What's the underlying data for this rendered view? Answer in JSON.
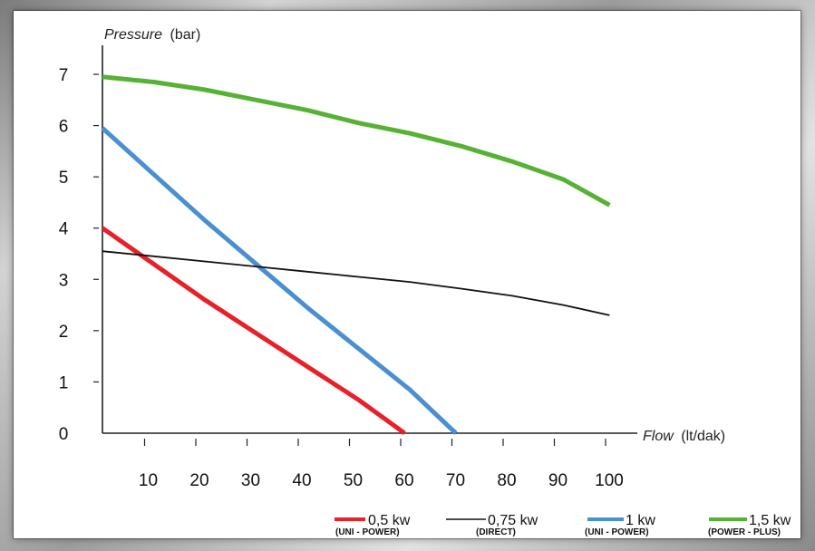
{
  "chart_data": {
    "type": "line",
    "ylabel": {
      "name": "Pressure",
      "unit": "(bar)"
    },
    "xlabel": {
      "name": "Flow",
      "unit": "(lt/dak)"
    },
    "xlim": [
      0,
      100
    ],
    "ylim": [
      0,
      7
    ],
    "x_ticks": [
      10,
      20,
      30,
      40,
      50,
      60,
      70,
      80,
      90,
      100
    ],
    "y_ticks": [
      0,
      1,
      2,
      3,
      4,
      5,
      6,
      7
    ],
    "grid": false,
    "legend_placement": "bottom",
    "series": [
      {
        "name": "0,5 kw",
        "subtitle": "(UNI - POWER)",
        "color": "#e8202a",
        "x": [
          0,
          10,
          20,
          30,
          40,
          50,
          59
        ],
        "y": [
          4.0,
          3.3,
          2.6,
          1.95,
          1.3,
          0.65,
          0.0
        ]
      },
      {
        "name": "0,75 kw",
        "subtitle": "(DIRECT)",
        "color": "#111111",
        "x": [
          0,
          10,
          20,
          30,
          40,
          50,
          60,
          70,
          80,
          90,
          99
        ],
        "y": [
          3.55,
          3.45,
          3.35,
          3.25,
          3.15,
          3.05,
          2.95,
          2.82,
          2.68,
          2.5,
          2.3
        ]
      },
      {
        "name": "1 kw",
        "subtitle": "(UNI - POWER)",
        "color": "#4a90d0",
        "x": [
          0,
          10,
          20,
          30,
          40,
          50,
          60,
          69
        ],
        "y": [
          5.95,
          5.05,
          4.15,
          3.3,
          2.45,
          1.65,
          0.85,
          0.0
        ]
      },
      {
        "name": "1,5 kw",
        "subtitle": "(POWER - PLUS)",
        "color": "#55b233",
        "x": [
          0,
          10,
          20,
          30,
          40,
          50,
          60,
          70,
          80,
          90,
          99
        ],
        "y": [
          6.95,
          6.85,
          6.7,
          6.5,
          6.3,
          6.05,
          5.85,
          5.6,
          5.3,
          4.95,
          4.45
        ]
      }
    ]
  }
}
